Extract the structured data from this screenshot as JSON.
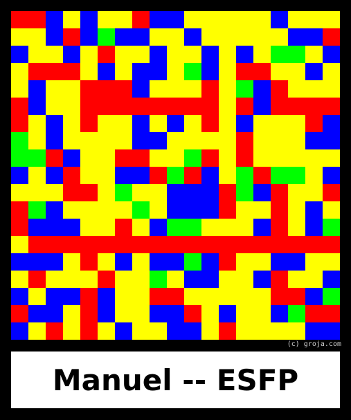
{
  "copyright": "(c) groja.com",
  "title": "Manuel -- ESFP",
  "colors": {
    "R": "#ff0000",
    "Y": "#ffff00",
    "B": "#0000ff",
    "G": "#00ff00",
    "background": "#000000",
    "panel": "#ffffff"
  },
  "mosaic_rows": [
    "RRBYBYYRBBYYYYYBYYY",
    "YYBRBGBBYYBYYYYYBBR",
    "BYYBYRYYBYYBYBYGGYB",
    "YRRRYBYBBYGBYRRYYBY",
    "YBYYRRRBYYYRYGBRYYY",
    "RBYYRRRRRRRRYRBRRRR",
    "RYBYRYYBYBYRYBYYYRB",
    "GYBYYYYBBYYYYRYYYBB",
    "GGRBYYRRYYGRYRYYYYY",
    "BYBRYYBBRGRBYGRGGYB",
    "YYYRRYGYYBBBRGBRYYR",
    "RGBYYYYGYBBBRYYRYBY",
    "RBBBYYRYBGGYYYBRYBG",
    "YRRRRRRRRRRRRRRRRRR",
    "BBBYRYBYBBGBRYYBBYY",
    "YRYYYRYYGYBBYYBRYYB",
    "BYBBRBYYRRYYYYYRRBG",
    "RBBYRBYYBBRYBYYBGRR",
    "BYRYRYBYYBBYRYYYYBB"
  ]
}
